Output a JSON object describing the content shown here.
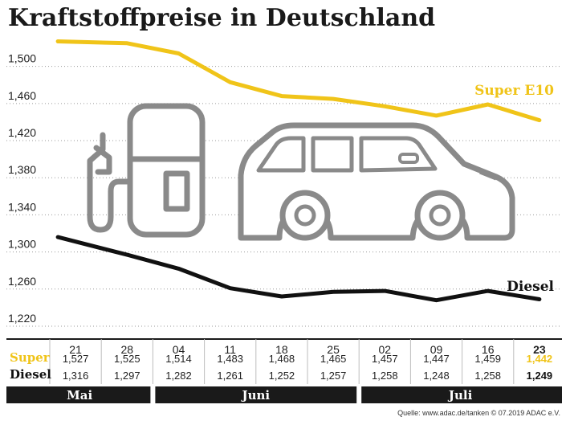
{
  "title": "Kraftstoffpreise in Deutschland",
  "source": "Quelle: www.adac.de/tanken   © 07.2019  ADAC e.V.",
  "chart_data": {
    "type": "line",
    "title": "Kraftstoffpreise in Deutschland",
    "categories": [
      "21",
      "28",
      "04",
      "11",
      "18",
      "25",
      "02",
      "09",
      "16",
      "23"
    ],
    "highlight_category": "23",
    "y_ticks": [
      "1,220",
      "1,260",
      "1,300",
      "1,340",
      "1,380",
      "1,420",
      "1,460",
      "1,500"
    ],
    "ylim": [
      1.22,
      1.53
    ],
    "grid": "horizontal-dotted",
    "series": [
      {
        "name": "Super E10",
        "row_label": "Super",
        "color": "#f0c419",
        "values": [
          1.527,
          1.525,
          1.514,
          1.483,
          1.468,
          1.465,
          1.457,
          1.447,
          1.459,
          1.442
        ],
        "labels": [
          "1,527",
          "1,525",
          "1,514",
          "1,483",
          "1,468",
          "1,465",
          "1,457",
          "1,447",
          "1,459",
          "1,442"
        ]
      },
      {
        "name": "Diesel",
        "row_label": "Diesel",
        "color": "#111111",
        "values": [
          1.316,
          1.297,
          1.282,
          1.261,
          1.252,
          1.257,
          1.258,
          1.248,
          1.258,
          1.249
        ],
        "labels": [
          "1,316",
          "1,297",
          "1,282",
          "1,261",
          "1,252",
          "1,257",
          "1,258",
          "1,248",
          "1,258",
          "1,249"
        ]
      }
    ],
    "months": [
      {
        "label": "Mai",
        "from": 0,
        "to": 1
      },
      {
        "label": "Juni",
        "from": 2,
        "to": 5
      },
      {
        "label": "Juli",
        "from": 6,
        "to": 9
      }
    ],
    "accent_color": "#f0c419",
    "month_bar_color": "#1a1a1a",
    "illustration_icons": [
      "fuel-pump-icon",
      "car-icon"
    ]
  }
}
